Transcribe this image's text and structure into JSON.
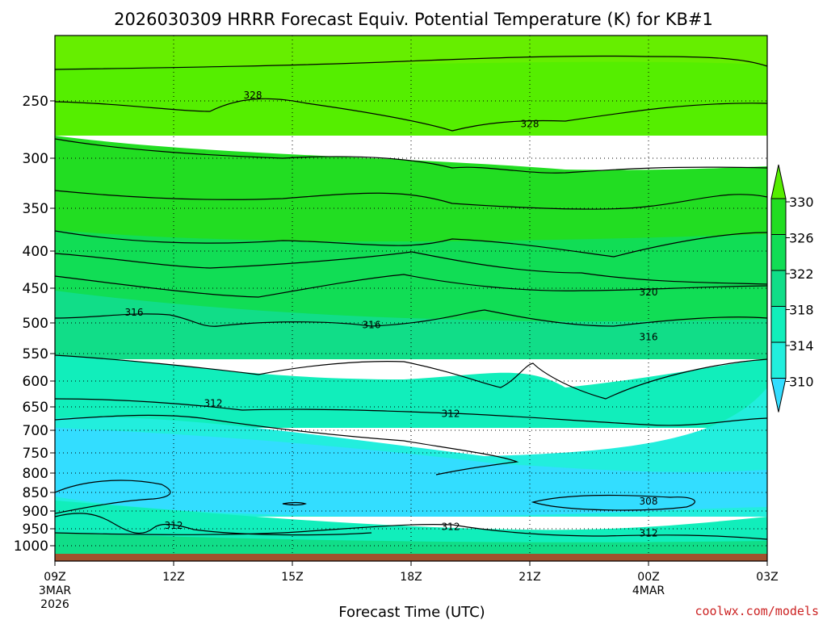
{
  "chart_data": {
    "type": "heatmap",
    "title": "2026030309 HRRR Forecast Equiv. Potential Temperature (K) for KB#1",
    "xlabel": "Forecast Time (UTC)",
    "x_ticks": [
      {
        "label": "09Z",
        "sub1": "3MAR",
        "sub2": "2026"
      },
      {
        "label": "12Z",
        "sub1": "",
        "sub2": ""
      },
      {
        "label": "15Z",
        "sub1": "",
        "sub2": ""
      },
      {
        "label": "18Z",
        "sub1": "",
        "sub2": ""
      },
      {
        "label": "21Z",
        "sub1": "",
        "sub2": ""
      },
      {
        "label": "00Z",
        "sub1": "4MAR",
        "sub2": ""
      },
      {
        "label": "03Z",
        "sub1": "",
        "sub2": ""
      }
    ],
    "x_hours": [
      0,
      3,
      6,
      9,
      12,
      15,
      18
    ],
    "y_levels_hPa": [
      250,
      300,
      350,
      400,
      450,
      500,
      550,
      600,
      650,
      700,
      750,
      800,
      850,
      900,
      950,
      1000
    ],
    "colorbar": {
      "labels": [
        "330",
        "326",
        "322",
        "318",
        "314",
        "310"
      ],
      "colors": [
        "#55ee00",
        "#22dd22",
        "#11dd55",
        "#11dd88",
        "#11eebb",
        "#22eedd",
        "#33ddff"
      ],
      "extend": "both"
    },
    "contour_labels": [
      {
        "text": "328",
        "hour": 5.0,
        "level": 245
      },
      {
        "text": "328",
        "hour": 12.0,
        "level": 270
      },
      {
        "text": "320",
        "hour": 15.0,
        "level": 456
      },
      {
        "text": "316",
        "hour": 2.0,
        "level": 485
      },
      {
        "text": "316",
        "hour": 8.0,
        "level": 503
      },
      {
        "text": "316",
        "hour": 15.0,
        "level": 523
      },
      {
        "text": "312",
        "hour": 4.0,
        "level": 643
      },
      {
        "text": "312",
        "hour": 10.0,
        "level": 665
      },
      {
        "text": "308",
        "hour": 15.0,
        "level": 874
      },
      {
        "text": "312",
        "hour": 3.0,
        "level": 941
      },
      {
        "text": "312",
        "hour": 10.0,
        "level": 944
      },
      {
        "text": "312",
        "hour": 15.0,
        "level": 963
      }
    ],
    "grid": true,
    "ground_color": "#a0522d"
  },
  "credit": "coolwx.com/models"
}
